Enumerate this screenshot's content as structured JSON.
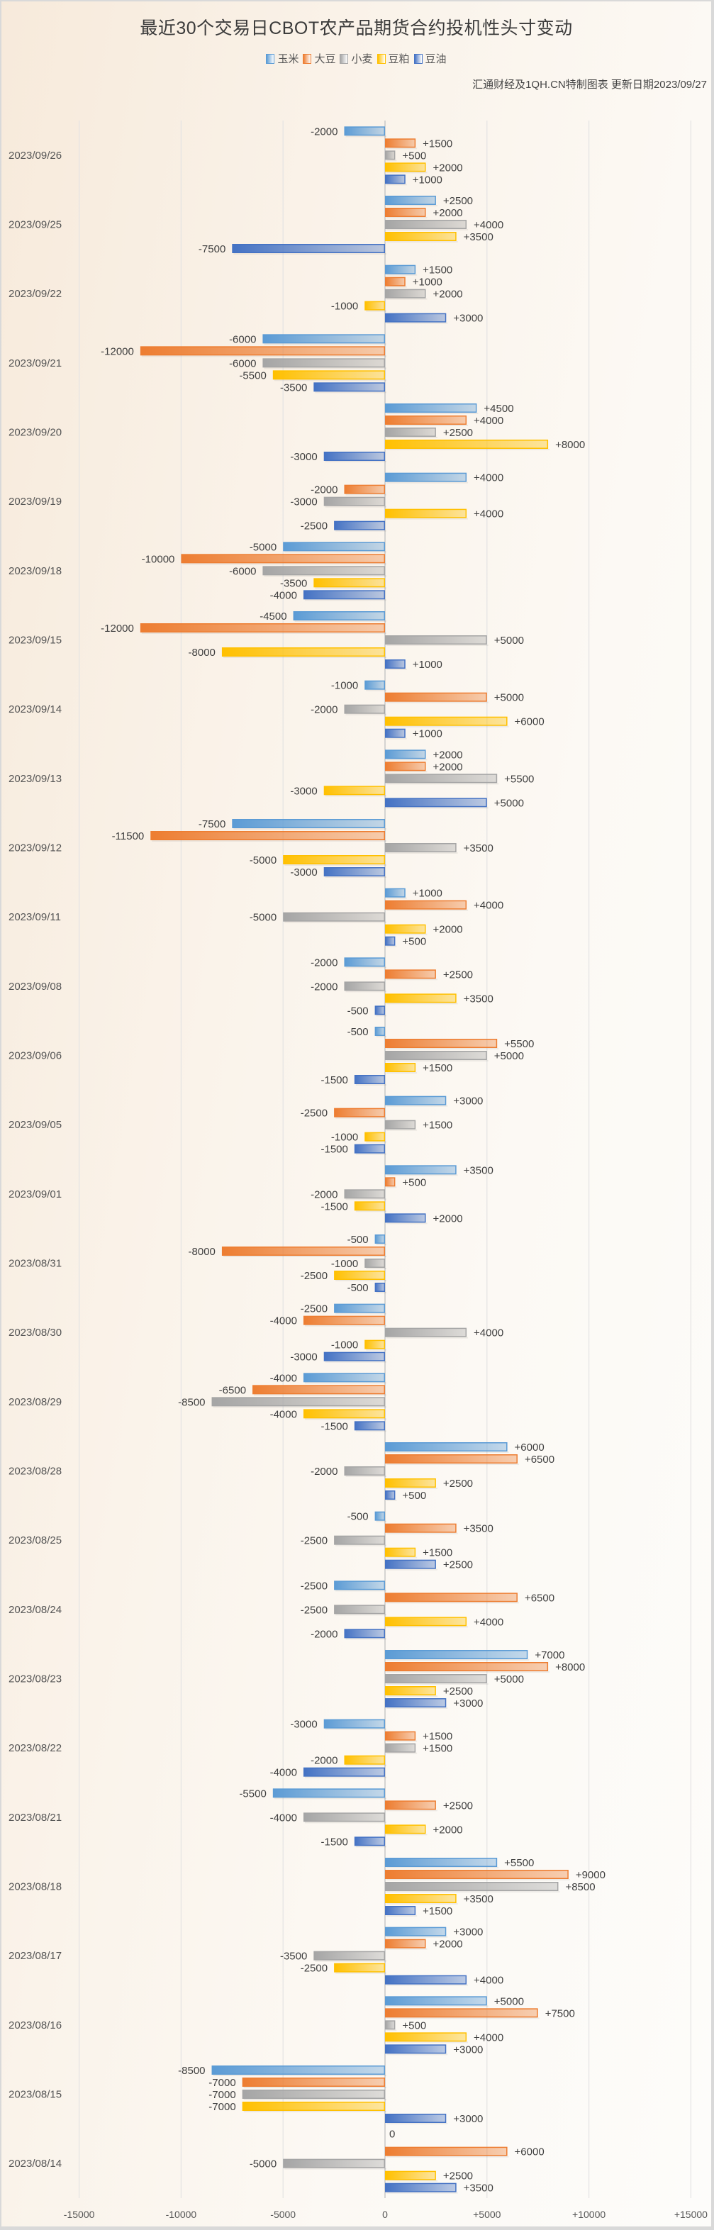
{
  "title": "最近30个交易日CBOT农产品期货合约投机性头寸变动",
  "subtitle": "汇通财经及1QH.CN特制图表 更新日期2023/09/27",
  "legend": [
    {
      "name": "玉米",
      "color": "#5b9bd5"
    },
    {
      "name": "大豆",
      "color": "#ed7d31"
    },
    {
      "name": "小麦",
      "color": "#a5a5a5"
    },
    {
      "name": "豆粕",
      "color": "#ffc000"
    },
    {
      "name": "豆油",
      "color": "#4472c4"
    }
  ],
  "chart_data": {
    "type": "bar",
    "orientation": "horizontal",
    "title": "最近30个交易日CBOT农产品期货合约投机性头寸变动",
    "xlabel": "",
    "ylabel": "",
    "xlim": [
      -15000,
      15000
    ],
    "x_ticks": [
      "-15000",
      "-10000",
      "-5000",
      "0",
      "+5000",
      "+10000",
      "+15000"
    ],
    "grid": true,
    "legend_position": "top-center",
    "categories": [
      "2023/09/26",
      "2023/09/25",
      "2023/09/22",
      "2023/09/21",
      "2023/09/20",
      "2023/09/19",
      "2023/09/18",
      "2023/09/15",
      "2023/09/14",
      "2023/09/13",
      "2023/09/12",
      "2023/09/11",
      "2023/09/08",
      "2023/09/06",
      "2023/09/05",
      "2023/09/01",
      "2023/08/31",
      "2023/08/30",
      "2023/08/29",
      "2023/08/28",
      "2023/08/25",
      "2023/08/24",
      "2023/08/23",
      "2023/08/22",
      "2023/08/21",
      "2023/08/18",
      "2023/08/17",
      "2023/08/16",
      "2023/08/15",
      "2023/08/14"
    ],
    "series": [
      {
        "name": "玉米",
        "color": "#5b9bd5",
        "values": [
          -2000,
          2500,
          1500,
          -6000,
          4500,
          4000,
          -5000,
          -4500,
          -1000,
          2000,
          -7500,
          1000,
          -2000,
          -500,
          3000,
          3500,
          -500,
          -2500,
          -4000,
          6000,
          -500,
          -2500,
          7000,
          -3000,
          -5500,
          5500,
          3000,
          5000,
          -8500,
          0
        ]
      },
      {
        "name": "大豆",
        "color": "#ed7d31",
        "values": [
          1500,
          2000,
          1000,
          -12000,
          4000,
          -2000,
          -10000,
          -12000,
          5000,
          2000,
          -11500,
          4000,
          2500,
          5500,
          -2500,
          500,
          -8000,
          -4000,
          -6500,
          6500,
          3500,
          6500,
          8000,
          1500,
          2500,
          9000,
          2000,
          7500,
          -7000,
          6000
        ]
      },
      {
        "name": "小麦",
        "color": "#a5a5a5",
        "values": [
          500,
          4000,
          2000,
          -6000,
          2500,
          -3000,
          -6000,
          5000,
          -2000,
          5500,
          3500,
          -5000,
          -2000,
          5000,
          1500,
          -2000,
          -1000,
          4000,
          -8500,
          -2000,
          -2500,
          -2500,
          5000,
          1500,
          -4000,
          8500,
          -3500,
          500,
          -7000,
          -5000
        ]
      },
      {
        "name": "豆粕",
        "color": "#ffc000",
        "values": [
          2000,
          3500,
          -1000,
          -5500,
          8000,
          4000,
          -3500,
          -8000,
          6000,
          -3000,
          -5000,
          2000,
          3500,
          1500,
          -1000,
          -1500,
          -2500,
          -1000,
          -4000,
          2500,
          1500,
          4000,
          2500,
          -2000,
          2000,
          3500,
          -2500,
          4000,
          -7000,
          2500
        ]
      },
      {
        "name": "豆油",
        "color": "#4472c4",
        "values": [
          1000,
          -7500,
          3000,
          -3500,
          -3000,
          -2500,
          -4000,
          1000,
          1000,
          5000,
          -3000,
          500,
          -500,
          -1500,
          -1500,
          2000,
          -500,
          -3000,
          -1500,
          500,
          2500,
          -2000,
          3000,
          -4000,
          -1500,
          1500,
          4000,
          3000,
          3000,
          3500
        ]
      }
    ]
  }
}
